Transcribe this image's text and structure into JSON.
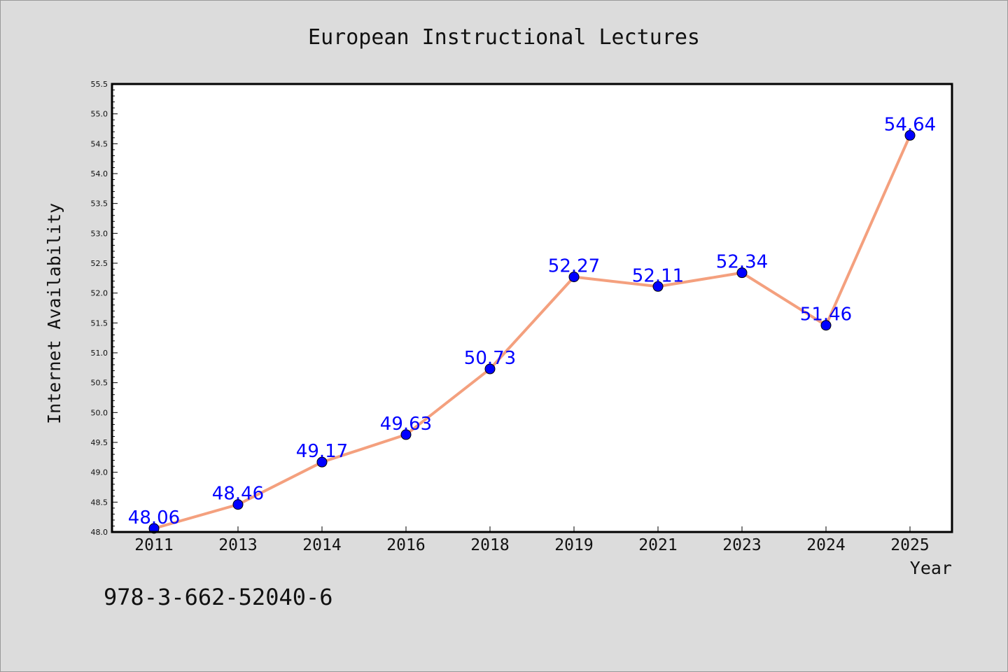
{
  "chart_data": {
    "type": "line",
    "title": "European Instructional Lectures",
    "xlabel": "Year",
    "ylabel": "Internet Availability",
    "categories": [
      "2011",
      "2013",
      "2014",
      "2016",
      "2018",
      "2019",
      "2021",
      "2023",
      "2024",
      "2025"
    ],
    "series": [
      {
        "values": [
          48.06,
          48.46,
          49.17,
          49.63,
          50.73,
          52.27,
          52.11,
          52.34,
          51.46,
          54.64
        ],
        "data_labels": [
          "48.06",
          "48.46",
          "49.17",
          "49.63",
          "50.73",
          "52.27",
          "52.11",
          "52.34",
          "51.46",
          "54.64"
        ]
      }
    ],
    "yticks": [
      "48.0",
      "48.5",
      "49.0",
      "49.5",
      "50.0",
      "50.5",
      "51.0",
      "51.5",
      "52.0",
      "52.5",
      "53.0",
      "53.5",
      "54.0",
      "54.5",
      "55.0",
      "55.5"
    ],
    "ylim": [
      48.0,
      55.5
    ],
    "grid": false,
    "legend": "none",
    "colors": {
      "line": "#f4a07e",
      "marker": "#0000ff",
      "label": "#0000ff",
      "plot_background": "#ffffff",
      "page_background": "#dcdcdc"
    }
  },
  "footer": {
    "isbn": "978-3-662-52040-6"
  }
}
